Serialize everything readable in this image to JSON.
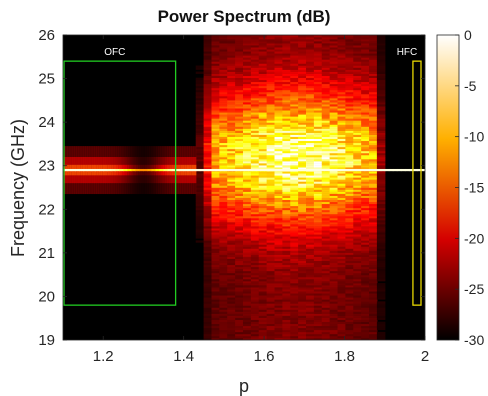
{
  "chart_data": {
    "type": "heatmap",
    "title": "Power Spectrum (dB)",
    "xlabel": "p",
    "ylabel": "Frequency (GHz)",
    "xlim": [
      1.1,
      2.0
    ],
    "ylim": [
      19,
      26
    ],
    "xticks": [
      "1.2",
      "1.4",
      "1.6",
      "1.8",
      "2"
    ],
    "yticks": [
      "19",
      "20",
      "21",
      "22",
      "23",
      "24",
      "25",
      "26"
    ],
    "colorbar": {
      "range": [
        -30,
        0
      ],
      "ticks": [
        "0",
        "-5",
        "-10",
        "-15",
        "-20",
        "-25",
        "-30"
      ],
      "colormap": "hot"
    },
    "features": [
      {
        "kind": "carrier_line",
        "frequency_ghz": 22.9,
        "x_range": [
          1.1,
          2.0
        ]
      },
      {
        "kind": "broadband_region",
        "x_range": [
          1.43,
          1.9
        ],
        "peak_frequency_ghz": 23.2,
        "peak_db": 0
      }
    ],
    "regions": [
      {
        "label": "OFC",
        "x_range": [
          1.1,
          1.38
        ],
        "y_range": [
          19.8,
          25.4
        ],
        "color": "#22cc22"
      },
      {
        "label": "HFC",
        "x_range": [
          1.97,
          2.0
        ],
        "y_range": [
          19.8,
          25.4
        ],
        "color": "#e8d800"
      }
    ]
  }
}
